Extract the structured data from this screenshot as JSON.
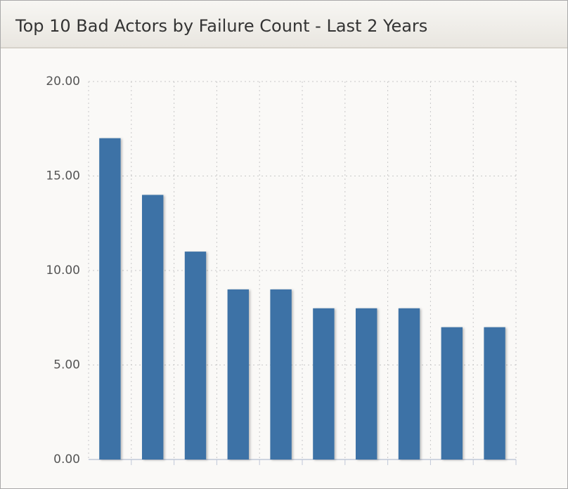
{
  "chart_data": {
    "type": "bar",
    "title": "Top 10 Bad Actors by Failure Count - Last 2 Years",
    "categories": [
      null,
      null,
      null,
      null,
      null,
      null,
      null,
      null,
      null,
      null
    ],
    "values": [
      17,
      14,
      11,
      9,
      9,
      8,
      8,
      8,
      7,
      7
    ],
    "color": "#3e72a6",
    "ylim": [
      0,
      20
    ],
    "yticks": [
      {
        "value": 0,
        "label": "0.00"
      },
      {
        "value": 5,
        "label": "5.00"
      },
      {
        "value": 10,
        "label": "10.00"
      },
      {
        "value": 15,
        "label": "15.00"
      },
      {
        "value": 20,
        "label": "20.00"
      }
    ],
    "grid": true
  }
}
